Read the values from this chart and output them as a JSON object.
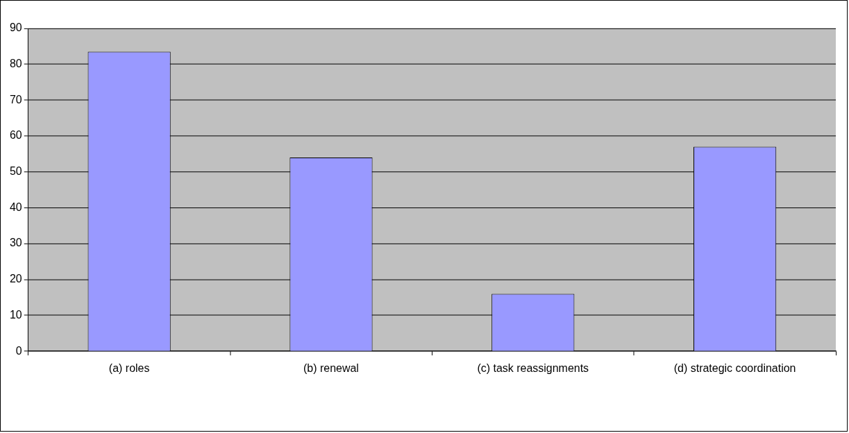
{
  "chart_data": {
    "type": "bar",
    "categories": [
      "(a) roles",
      "(b) renewal",
      "(c) task reassignments",
      "(d) strategic coordination"
    ],
    "values": [
      83.5,
      54,
      16,
      57
    ],
    "color": "#9999ff",
    "ylim": [
      0,
      90
    ],
    "yticks": [
      0,
      10,
      20,
      30,
      40,
      50,
      60,
      70,
      80,
      90
    ],
    "grid": "y",
    "legend": false
  }
}
